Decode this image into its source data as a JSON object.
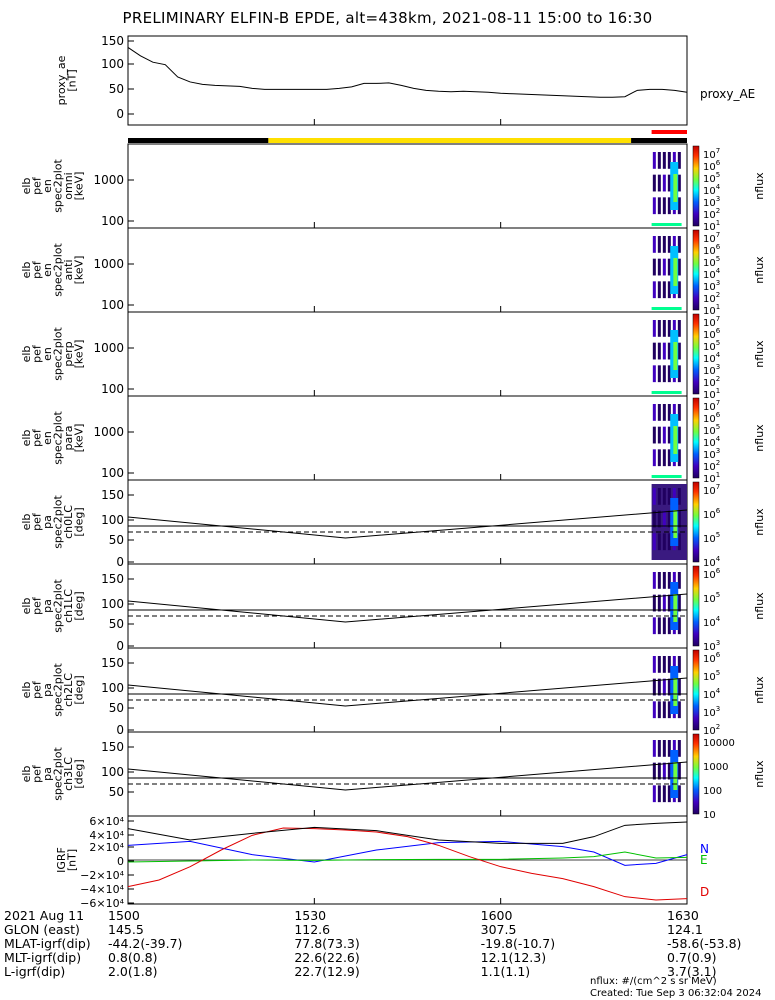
{
  "title": "PRELIMINARY ELFIN-B EPDE, alt=438km, 2021-08-11 15:00 to 16:30",
  "chart_data": {
    "type": "line",
    "x_range": [
      "15:00",
      "16:30"
    ],
    "panels": [
      {
        "id": "proxy_ae",
        "ylabel": [
          "proxy_ae",
          "[nT]"
        ],
        "yticks": [
          "150",
          "100",
          "50",
          "0"
        ],
        "ylim": [
          -10,
          160
        ],
        "series": [
          {
            "name": "proxy_AE",
            "x_min": [
              0,
              2,
              4,
              6,
              8,
              10,
              12,
              14,
              16,
              18,
              20,
              22,
              24,
              26,
              28,
              30,
              32,
              34,
              36,
              38,
              40,
              42,
              44,
              46,
              48,
              50,
              52,
              54,
              56,
              58,
              60,
              62,
              64,
              66,
              68,
              70,
              72,
              74,
              76,
              78,
              80,
              82,
              84,
              86,
              88,
              90
            ],
            "values": [
              135,
              118,
              105,
              100,
              75,
              65,
              60,
              58,
              57,
              56,
              52,
              50,
              50,
              50,
              50,
              50,
              50,
              52,
              55,
              62,
              62,
              63,
              58,
              52,
              48,
              46,
              45,
              46,
              45,
              44,
              42,
              41,
              40,
              39,
              38,
              37,
              36,
              35,
              34,
              34,
              35,
              48,
              50,
              50,
              48,
              44
            ]
          }
        ]
      },
      {
        "id": "spec_omni",
        "ylabel": [
          "elb",
          "pef",
          "en",
          "spec2plot",
          "omni",
          "[keV]"
        ],
        "yticks": [
          "1000",
          "100"
        ],
        "cbar_ticks": [
          "10^7",
          "10^6",
          "10^5",
          "10^4",
          "10^3",
          "10^2",
          "10^1"
        ],
        "cbar_label": "nflux"
      },
      {
        "id": "spec_anti",
        "ylabel": [
          "elb",
          "pef",
          "en",
          "spec2plot",
          "anti",
          "[keV]"
        ],
        "yticks": [
          "1000",
          "100"
        ],
        "cbar_ticks": [
          "10^7",
          "10^6",
          "10^5",
          "10^4",
          "10^3",
          "10^2",
          "10^1"
        ],
        "cbar_label": "nflux"
      },
      {
        "id": "spec_perp",
        "ylabel": [
          "elb",
          "pef",
          "en",
          "spec2plot",
          "perp",
          "[keV]"
        ],
        "yticks": [
          "1000",
          "100"
        ],
        "cbar_ticks": [
          "10^7",
          "10^6",
          "10^5",
          "10^4",
          "10^3",
          "10^2",
          "10^1"
        ],
        "cbar_label": "nflux"
      },
      {
        "id": "spec_para",
        "ylabel": [
          "elb",
          "pef",
          "en",
          "spec2plot",
          "para",
          "[keV]"
        ],
        "yticks": [
          "1000",
          "100"
        ],
        "cbar_ticks": [
          "10^7",
          "10^6",
          "10^5",
          "10^4",
          "10^3",
          "10^2",
          "10^1"
        ],
        "cbar_label": "nflux"
      },
      {
        "id": "pa_ch0",
        "ylabel": [
          "elb",
          "pef",
          "pa",
          "spec2plot",
          "ch0LC",
          "[deg]"
        ],
        "yticks": [
          "150",
          "100",
          "50",
          "0"
        ],
        "cbar_ticks": [
          "10^7",
          "10^6",
          "10^5",
          "10^4"
        ],
        "cbar_label": "nflux"
      },
      {
        "id": "pa_ch1",
        "ylabel": [
          "elb",
          "pef",
          "pa",
          "spec2plot",
          "ch1LC",
          "[deg]"
        ],
        "yticks": [
          "150",
          "100",
          "50",
          "0"
        ],
        "cbar_ticks": [
          "10^6",
          "10^5",
          "10^4",
          "10^3"
        ],
        "cbar_label": "nflux"
      },
      {
        "id": "pa_ch2",
        "ylabel": [
          "elb",
          "pef",
          "pa",
          "spec2plot",
          "ch2LC",
          "[deg]"
        ],
        "yticks": [
          "150",
          "100",
          "50",
          "0"
        ],
        "cbar_ticks": [
          "10^6",
          "10^5",
          "10^4",
          "10^3",
          "10^2"
        ],
        "cbar_label": "nflux"
      },
      {
        "id": "pa_ch3",
        "ylabel": [
          "elb",
          "pef",
          "pa",
          "spec2plot",
          "ch3LC",
          "[deg]"
        ],
        "yticks": [
          "150",
          "100",
          "50"
        ],
        "cbar_ticks": [
          "10000",
          "1000",
          "100",
          "10"
        ],
        "cbar_label": "nflux"
      },
      {
        "id": "igrf",
        "ylabel": [
          "IGRF",
          "[nT]"
        ],
        "yticks": [
          "6×10⁴",
          "4×10⁴",
          "2×10⁴",
          "0",
          "−2×10⁴",
          "−4×10⁴",
          "−6×10⁴"
        ],
        "ylim": [
          -60000,
          60000
        ],
        "series": [
          {
            "name": "N",
            "color": "#0000ff",
            "x_min": [
              0,
              10,
              20,
              30,
              40,
              50,
              60,
              70,
              75,
              80,
              85,
              90
            ],
            "values": [
              22000,
              28000,
              8000,
              -3000,
              15000,
              26000,
              28000,
              20000,
              12000,
              -8000,
              -5000,
              8000
            ]
          },
          {
            "name": "E",
            "color": "#00c000",
            "x_min": [
              0,
              10,
              20,
              30,
              40,
              50,
              60,
              70,
              75,
              80,
              85,
              90
            ],
            "values": [
              -3000,
              -1500,
              0,
              -500,
              500,
              1000,
              1000,
              3000,
              5000,
              12000,
              3000,
              4000
            ]
          },
          {
            "name": "D",
            "color": "#e00000",
            "x_min": [
              0,
              5,
              10,
              15,
              20,
              25,
              30,
              35,
              40,
              45,
              50,
              55,
              60,
              65,
              70,
              75,
              80,
              85,
              90
            ],
            "values": [
              -40000,
              -30000,
              -10000,
              15000,
              37000,
              48000,
              47000,
              45000,
              42000,
              35000,
              22000,
              5000,
              -10000,
              -20000,
              -28000,
              -40000,
              -55000,
              -60000,
              -58000
            ]
          },
          {
            "name": "total",
            "color": "#000000",
            "x_min": [
              0,
              10,
              20,
              30,
              40,
              50,
              60,
              70,
              75,
              80,
              85,
              90
            ],
            "values": [
              47000,
              30000,
              40000,
              49000,
              44000,
              30000,
              25000,
              25000,
              35000,
              52000,
              55000,
              57000
            ]
          }
        ],
        "legend": [
          "N",
          "E",
          "D"
        ]
      }
    ],
    "orbit_bar": {
      "segments": [
        {
          "color": "#000000",
          "from_min": 0,
          "to_min": 22.6
        },
        {
          "color": "#ffe000",
          "from_min": 22.6,
          "to_min": 81
        },
        {
          "color": "#000000",
          "from_min": 81,
          "to_min": 90
        }
      ],
      "science_zone": {
        "color": "#ff0000",
        "from_min": 84.3,
        "to_min": 90
      }
    }
  },
  "footer": {
    "rows": [
      {
        "label": "2021 Aug 11",
        "values": [
          "1500",
          "1530",
          "1600",
          "1630"
        ]
      },
      {
        "label": "GLON (east)",
        "values": [
          "145.5",
          "112.6",
          "307.5",
          "124.1"
        ]
      },
      {
        "label": "MLAT-igrf(dip)",
        "values": [
          "-44.2(-39.7)",
          "77.8(73.3)",
          "-19.8(-10.7)",
          "-58.6(-53.8)"
        ]
      },
      {
        "label": "MLT-igrf(dip)",
        "values": [
          "0.8(0.8)",
          "22.6(22.6)",
          "12.1(12.3)",
          "0.7(0.9)"
        ]
      },
      {
        "label": "L-igrf(dip)",
        "values": [
          "2.0(1.8)",
          "22.7(12.9)",
          "1.1(1.1)",
          "3.7(3.1)"
        ]
      }
    ],
    "notes": [
      "nflux: #/(cm^2 s sr MeV)",
      "Created: Tue Sep  3 06:32:04 2024"
    ]
  },
  "side_labels": {
    "proxy_ae": "proxy_AE",
    "legend_n": "N",
    "legend_e": "E",
    "legend_d": "D"
  }
}
